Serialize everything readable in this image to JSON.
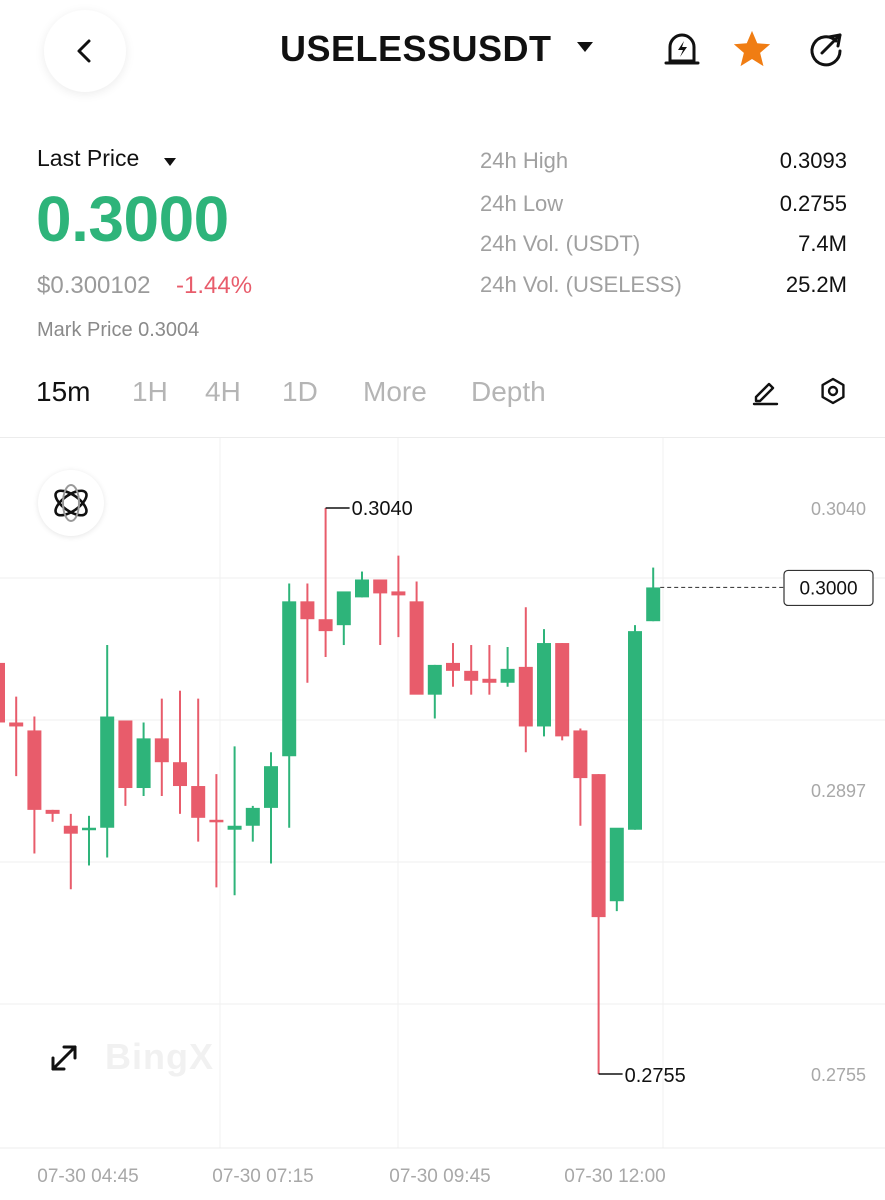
{
  "header": {
    "title": "USELESSUSDT",
    "icons": [
      "back-arrow-icon",
      "caret-down-icon",
      "price-alert-bell-icon",
      "favorite-star-icon",
      "share-icon"
    ],
    "star_color": "#f07d13"
  },
  "price": {
    "label": "Last Price",
    "last": "0.3000",
    "usd": "$0.300102",
    "change": "-1.44%",
    "mark": "Mark Price 0.3004",
    "up_color": "#2eb47a",
    "down_color": "#e85c6b"
  },
  "stats": [
    {
      "label": "24h High",
      "value": "0.3093"
    },
    {
      "label": "24h Low",
      "value": "0.2755"
    },
    {
      "label": "24h Vol. (USDT)",
      "value": "7.4M"
    },
    {
      "label": "24h Vol. (USELESS)",
      "value": "25.2M"
    }
  ],
  "tabs": [
    {
      "label": "15m",
      "active": true
    },
    {
      "label": "1H",
      "active": false
    },
    {
      "label": "4H",
      "active": false
    },
    {
      "label": "1D",
      "active": false
    },
    {
      "label": "More",
      "active": false
    },
    {
      "label": "Depth",
      "active": false
    }
  ],
  "tool_icons": [
    "pencil-draw-icon",
    "settings-hexagon-icon"
  ],
  "chart": {
    "watermark": "BingX",
    "y_labels": [
      "0.3040",
      "0.2897",
      "0.2755"
    ],
    "current_price_tag": "0.3000",
    "high_marker": "0.3040",
    "low_marker": "0.2755",
    "x_labels": [
      "07-30 04:45",
      "07-30 07:15",
      "07-30 09:45",
      "07-30 12:00"
    ]
  },
  "chart_data": {
    "type": "candlestick",
    "x_ticks": [
      "07-30 04:45",
      "07-30 07:15",
      "07-30 09:45",
      "07-30 12:00"
    ],
    "y_ticks": [
      0.304,
      0.2897,
      0.2755
    ],
    "candles": [
      {
        "o": 0.2962,
        "h": 0.2962,
        "l": 0.2932,
        "c": 0.2932
      },
      {
        "o": 0.2932,
        "h": 0.2945,
        "l": 0.2905,
        "c": 0.293
      },
      {
        "o": 0.2928,
        "h": 0.2935,
        "l": 0.2866,
        "c": 0.2888
      },
      {
        "o": 0.2888,
        "h": 0.2888,
        "l": 0.2882,
        "c": 0.2886
      },
      {
        "o": 0.288,
        "h": 0.2886,
        "l": 0.2848,
        "c": 0.2876
      },
      {
        "o": 0.2878,
        "h": 0.2885,
        "l": 0.286,
        "c": 0.2879
      },
      {
        "o": 0.2879,
        "h": 0.2971,
        "l": 0.2864,
        "c": 0.2935
      },
      {
        "o": 0.2933,
        "h": 0.2933,
        "l": 0.289,
        "c": 0.2899
      },
      {
        "o": 0.2899,
        "h": 0.2932,
        "l": 0.2895,
        "c": 0.2924
      },
      {
        "o": 0.2924,
        "h": 0.2944,
        "l": 0.2895,
        "c": 0.2912
      },
      {
        "o": 0.2912,
        "h": 0.2948,
        "l": 0.2886,
        "c": 0.29
      },
      {
        "o": 0.29,
        "h": 0.2944,
        "l": 0.2872,
        "c": 0.2884
      },
      {
        "o": 0.2883,
        "h": 0.2906,
        "l": 0.2849,
        "c": 0.2882
      },
      {
        "o": 0.2878,
        "h": 0.292,
        "l": 0.2845,
        "c": 0.288
      },
      {
        "o": 0.288,
        "h": 0.289,
        "l": 0.2872,
        "c": 0.2889
      },
      {
        "o": 0.2889,
        "h": 0.2917,
        "l": 0.2861,
        "c": 0.291
      },
      {
        "o": 0.2915,
        "h": 0.3002,
        "l": 0.2879,
        "c": 0.2993
      },
      {
        "o": 0.2993,
        "h": 0.3002,
        "l": 0.2952,
        "c": 0.2984
      },
      {
        "o": 0.2984,
        "h": 0.304,
        "l": 0.2965,
        "c": 0.2978
      },
      {
        "o": 0.2981,
        "h": 0.2996,
        "l": 0.2971,
        "c": 0.2998
      },
      {
        "o": 0.2995,
        "h": 0.3008,
        "l": 0.2995,
        "c": 0.3004
      },
      {
        "o": 0.3004,
        "h": 0.3004,
        "l": 0.2971,
        "c": 0.2997
      },
      {
        "o": 0.2998,
        "h": 0.3016,
        "l": 0.2975,
        "c": 0.2996
      },
      {
        "o": 0.2993,
        "h": 0.3003,
        "l": 0.2947,
        "c": 0.2946
      },
      {
        "o": 0.2946,
        "h": 0.2961,
        "l": 0.2934,
        "c": 0.2961
      },
      {
        "o": 0.2962,
        "h": 0.2972,
        "l": 0.295,
        "c": 0.2958
      },
      {
        "o": 0.2958,
        "h": 0.2971,
        "l": 0.2946,
        "c": 0.2953
      },
      {
        "o": 0.2954,
        "h": 0.2971,
        "l": 0.2946,
        "c": 0.2952
      },
      {
        "o": 0.2952,
        "h": 0.297,
        "l": 0.295,
        "c": 0.2959
      },
      {
        "o": 0.296,
        "h": 0.299,
        "l": 0.2917,
        "c": 0.293
      },
      {
        "o": 0.293,
        "h": 0.2979,
        "l": 0.2925,
        "c": 0.2972
      },
      {
        "o": 0.2972,
        "h": 0.2972,
        "l": 0.2923,
        "c": 0.2925
      },
      {
        "o": 0.2928,
        "h": 0.2929,
        "l": 0.288,
        "c": 0.2904
      },
      {
        "o": 0.2906,
        "h": 0.2906,
        "l": 0.2755,
        "c": 0.2834
      },
      {
        "o": 0.2842,
        "h": 0.2878,
        "l": 0.2837,
        "c": 0.2879
      },
      {
        "o": 0.2878,
        "h": 0.2981,
        "l": 0.2878,
        "c": 0.2978
      },
      {
        "o": 0.2983,
        "h": 0.301,
        "l": 0.2983,
        "c": 0.3
      }
    ],
    "last_price": 0.3
  }
}
